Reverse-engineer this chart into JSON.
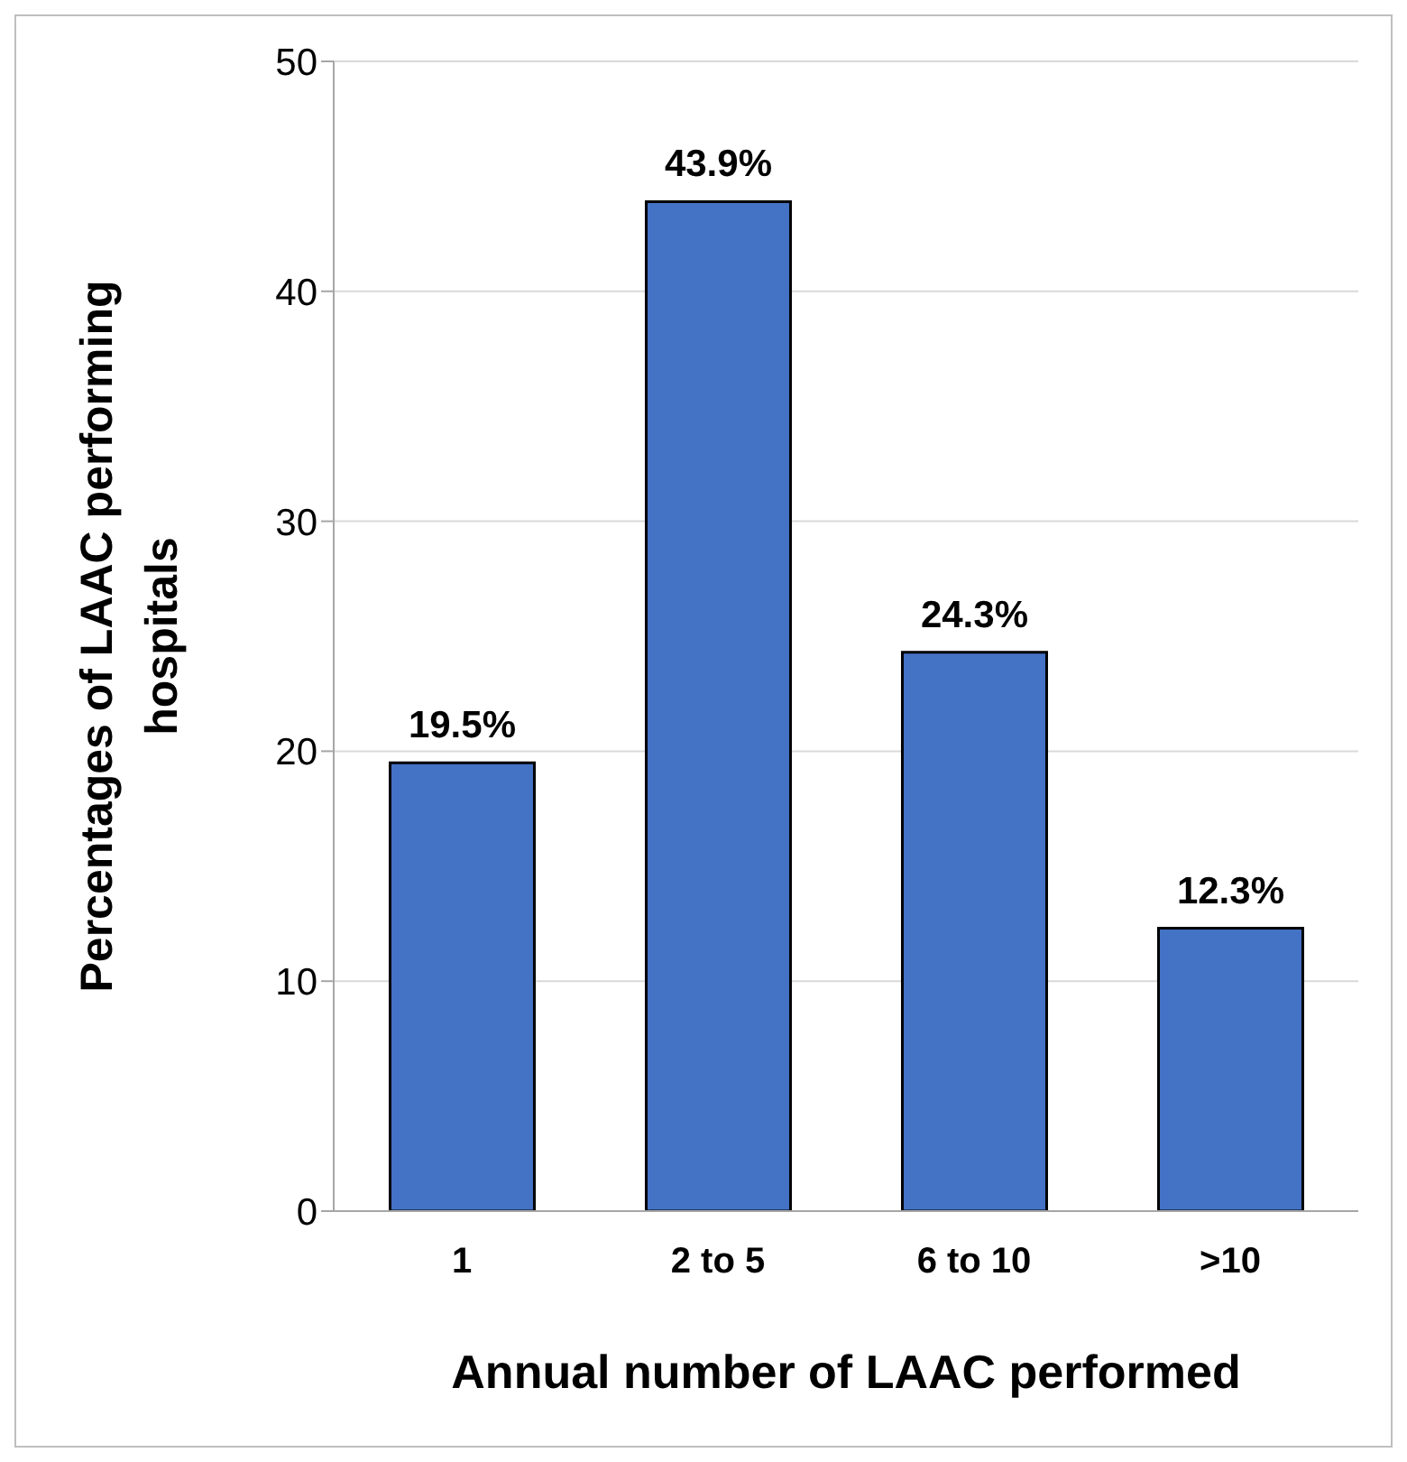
{
  "chart_data": {
    "type": "bar",
    "xlabel": "Annual number of LAAC performed",
    "ylabel": "Percentages of LAAC performing hospitals",
    "categories": [
      "1",
      "2 to 5",
      "6 to 10",
      ">10"
    ],
    "values": [
      19.5,
      43.9,
      24.3,
      12.3
    ],
    "value_labels": [
      "19.5%",
      "43.9%",
      "24.3%",
      "12.3%"
    ],
    "color": "#4472c4",
    "ylim": [
      0,
      50
    ],
    "yticks": [
      0,
      10,
      20,
      30,
      40,
      50
    ],
    "grid": "y"
  }
}
